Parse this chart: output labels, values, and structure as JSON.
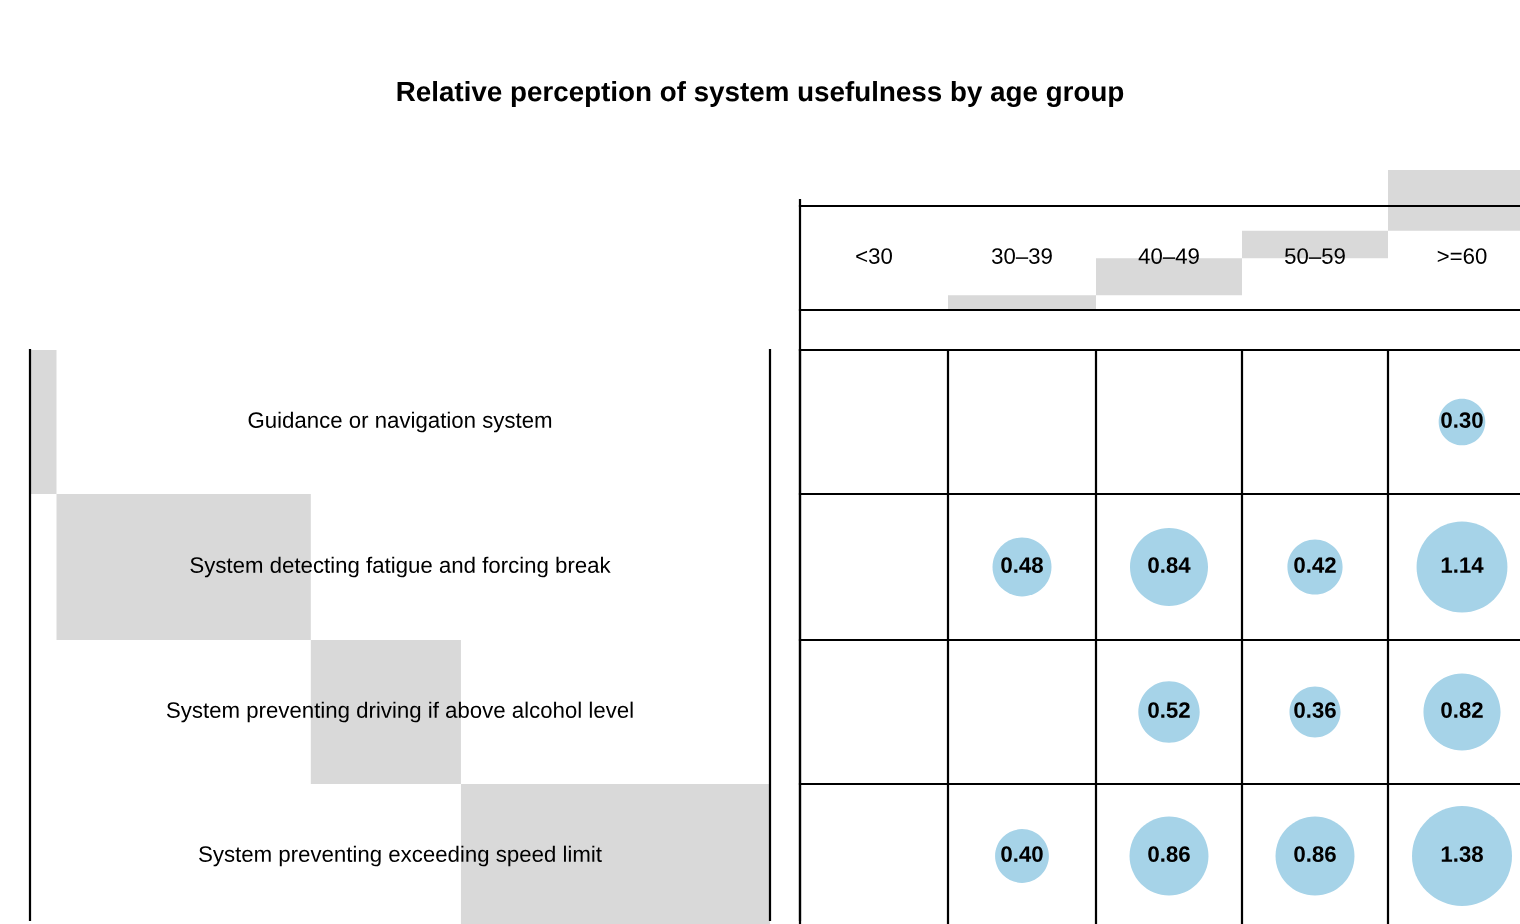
{
  "chart_data": {
    "type": "heatmap",
    "title": "Relative perception of system usefulness by age group",
    "categories": [
      "<30",
      "30–39",
      "40–49",
      "50–59",
      ">=60"
    ],
    "y_categories": [
      "Guidance or navigation system",
      "System detecting fatigue and forcing break",
      "System preventing driving if above alcohol level",
      "System preventing exceeding speed limit"
    ],
    "cells": [
      [
        null,
        null,
        null,
        null,
        0.3
      ],
      [
        null,
        0.48,
        0.84,
        0.42,
        1.14
      ],
      [
        null,
        null,
        0.52,
        0.36,
        0.82
      ],
      [
        null,
        0.4,
        0.86,
        0.86,
        1.38
      ]
    ],
    "cell_labels": [
      [
        null,
        null,
        null,
        null,
        "0.30"
      ],
      [
        null,
        "0.48",
        "0.84",
        "0.42",
        "1.14"
      ],
      [
        null,
        null,
        "0.52",
        "0.36",
        "0.82"
      ],
      [
        null,
        "0.40",
        "0.86",
        "0.86",
        "1.38"
      ]
    ],
    "color": "#a6d3e8"
  }
}
